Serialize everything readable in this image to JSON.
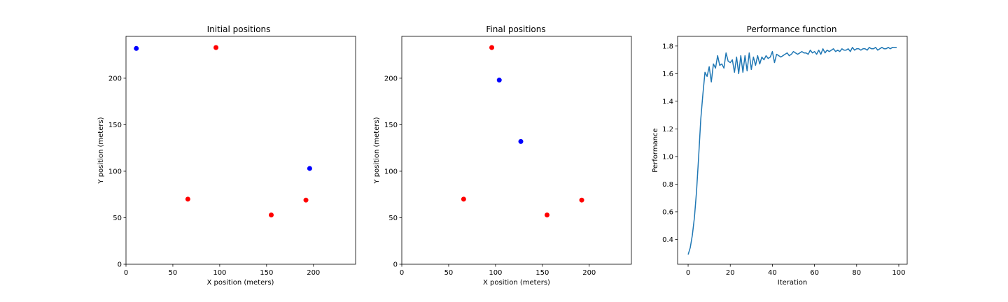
{
  "chart_data": [
    {
      "type": "scatter",
      "title": "Initial positions",
      "xlabel": "X position (meters)",
      "ylabel": "Y position (meters)",
      "xlim": [
        0,
        245
      ],
      "ylim": [
        0,
        245
      ],
      "xticks": [
        0,
        50,
        100,
        150,
        200
      ],
      "yticks": [
        0,
        50,
        100,
        150,
        200
      ],
      "grid": false,
      "series": [
        {
          "color": "#0000ff",
          "points": [
            [
              11,
              232
            ],
            [
              196,
              103
            ]
          ]
        },
        {
          "color": "#ff0000",
          "points": [
            [
              96,
              233
            ],
            [
              66,
              70
            ],
            [
              155,
              53
            ],
            [
              192,
              69
            ]
          ]
        }
      ]
    },
    {
      "type": "scatter",
      "title": "Final positions",
      "xlabel": "X position (meters)",
      "ylabel": "Y position (meters)",
      "xlim": [
        0,
        245
      ],
      "ylim": [
        0,
        245
      ],
      "xticks": [
        0,
        50,
        100,
        150,
        200
      ],
      "yticks": [
        0,
        50,
        100,
        150,
        200
      ],
      "grid": false,
      "series": [
        {
          "color": "#0000ff",
          "points": [
            [
              104,
              198
            ],
            [
              127,
              132
            ]
          ]
        },
        {
          "color": "#ff0000",
          "points": [
            [
              96,
              233
            ],
            [
              66,
              70
            ],
            [
              155,
              53
            ],
            [
              192,
              69
            ]
          ]
        }
      ]
    },
    {
      "type": "line",
      "title": "Performance function",
      "xlabel": "Iteration",
      "ylabel": "Performance",
      "xlim": [
        -5,
        104
      ],
      "ylim": [
        0.22,
        1.87
      ],
      "xticks": [
        0,
        20,
        40,
        60,
        80,
        100
      ],
      "yticks": [
        0.4,
        0.6,
        0.8,
        1.0,
        1.2,
        1.4,
        1.6,
        1.8
      ],
      "ytick_labels": [
        "0.4",
        "0.6",
        "0.8",
        "1.0",
        "1.2",
        "1.4",
        "1.6",
        "1.8"
      ],
      "grid": false,
      "series": [
        {
          "color": "#1f77b4",
          "x": [
            0,
            1,
            2,
            3,
            4,
            5,
            6,
            7,
            8,
            9,
            10,
            11,
            12,
            13,
            14,
            15,
            16,
            17,
            18,
            19,
            20,
            21,
            22,
            23,
            24,
            25,
            26,
            27,
            28,
            29,
            30,
            31,
            32,
            33,
            34,
            35,
            36,
            37,
            38,
            39,
            40,
            41,
            42,
            43,
            44,
            45,
            46,
            47,
            48,
            49,
            50,
            51,
            52,
            53,
            54,
            55,
            56,
            57,
            58,
            59,
            60,
            61,
            62,
            63,
            64,
            65,
            66,
            67,
            68,
            69,
            70,
            71,
            72,
            73,
            74,
            75,
            76,
            77,
            78,
            79,
            80,
            81,
            82,
            83,
            84,
            85,
            86,
            87,
            88,
            89,
            90,
            91,
            92,
            93,
            94,
            95,
            96,
            97,
            98,
            99
          ],
          "values": [
            0.29,
            0.34,
            0.43,
            0.56,
            0.75,
            1.0,
            1.27,
            1.45,
            1.61,
            1.58,
            1.65,
            1.54,
            1.67,
            1.64,
            1.73,
            1.66,
            1.67,
            1.64,
            1.75,
            1.69,
            1.68,
            1.7,
            1.61,
            1.72,
            1.6,
            1.73,
            1.61,
            1.73,
            1.62,
            1.75,
            1.63,
            1.72,
            1.66,
            1.73,
            1.67,
            1.72,
            1.7,
            1.73,
            1.71,
            1.72,
            1.76,
            1.68,
            1.74,
            1.73,
            1.72,
            1.73,
            1.74,
            1.75,
            1.73,
            1.74,
            1.76,
            1.75,
            1.74,
            1.75,
            1.76,
            1.75,
            1.75,
            1.74,
            1.77,
            1.75,
            1.76,
            1.74,
            1.77,
            1.74,
            1.78,
            1.75,
            1.77,
            1.76,
            1.77,
            1.78,
            1.76,
            1.77,
            1.76,
            1.78,
            1.77,
            1.77,
            1.78,
            1.76,
            1.79,
            1.77,
            1.78,
            1.78,
            1.77,
            1.78,
            1.78,
            1.77,
            1.79,
            1.78,
            1.78,
            1.79,
            1.77,
            1.78,
            1.79,
            1.78,
            1.78,
            1.79,
            1.78,
            1.79,
            1.79,
            1.79
          ]
        }
      ]
    }
  ]
}
